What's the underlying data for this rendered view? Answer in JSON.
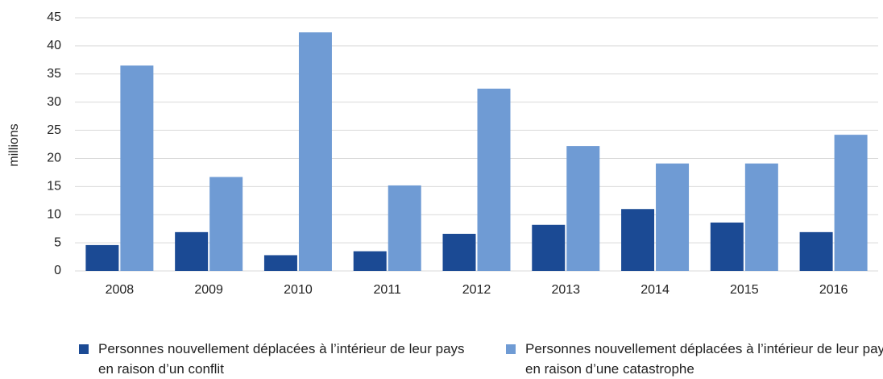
{
  "chart_data": {
    "type": "bar",
    "y_label": "millions",
    "categories": [
      "2008",
      "2009",
      "2010",
      "2011",
      "2012",
      "2013",
      "2014",
      "2015",
      "2016"
    ],
    "series": [
      {
        "name": "Personnes nouvellement déplacées à l’intérieur de leur pays en raison d’un conflit",
        "color": "#1b4a94",
        "values": [
          4.6,
          6.9,
          2.8,
          3.5,
          6.6,
          8.2,
          11.0,
          8.6,
          6.9
        ]
      },
      {
        "name": "Personnes nouvellement déplacées à l’intérieur de leur pays en raison d’une catastrophe",
        "color": "#6f9bd4",
        "values": [
          36.5,
          16.7,
          42.4,
          15.2,
          32.4,
          22.2,
          19.1,
          19.1,
          24.2
        ]
      }
    ],
    "ylim": [
      0,
      45
    ],
    "yticks": [
      0,
      5,
      10,
      15,
      20,
      25,
      30,
      35,
      40,
      45
    ],
    "grid": true,
    "legend": "bottom"
  }
}
